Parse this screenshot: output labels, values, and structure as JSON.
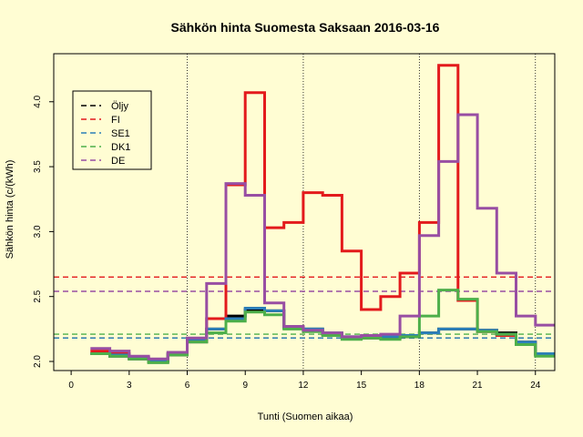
{
  "chart_data": {
    "type": "line",
    "title": "Sähkön hinta Suomesta Saksaan 2016-03-16",
    "xlabel": "Tunti (Suomen aikaa)",
    "ylabel": "Sähkön hinta (c/(kWh)",
    "xlim": [
      -0.9,
      25.0
    ],
    "ylim": [
      1.93,
      4.37
    ],
    "x_ticks": [
      0,
      3,
      6,
      9,
      12,
      15,
      18,
      21,
      24
    ],
    "y_ticks": [
      2.0,
      2.5,
      3.0,
      3.5,
      4.0
    ],
    "vlines": [
      6,
      12,
      18,
      24
    ],
    "step_x": [
      1,
      2,
      3,
      4,
      5,
      6,
      7,
      8,
      9,
      10,
      11,
      12,
      13,
      14,
      15,
      16,
      17,
      18,
      19,
      20,
      21,
      22,
      23,
      24,
      25
    ],
    "series": [
      {
        "name": "Öljy",
        "color": "#000000",
        "values": [
          2.06,
          2.04,
          2.02,
          2.0,
          2.05,
          2.15,
          2.25,
          2.35,
          2.4,
          2.39,
          2.26,
          2.25,
          2.21,
          2.18,
          2.18,
          2.18,
          2.19,
          2.22,
          2.25,
          2.25,
          2.24,
          2.22,
          2.14,
          2.05
        ]
      },
      {
        "name": "FI",
        "color": "#e31a1c",
        "values": [
          2.08,
          2.06,
          2.03,
          2.01,
          2.06,
          2.16,
          2.33,
          3.36,
          4.07,
          3.03,
          3.07,
          3.3,
          3.28,
          2.85,
          2.4,
          2.5,
          2.68,
          3.07,
          4.28,
          2.47,
          2.23,
          2.2,
          2.15,
          2.06
        ]
      },
      {
        "name": "SE1",
        "color": "#2c7fb8",
        "values": [
          2.06,
          2.05,
          2.03,
          2.01,
          2.06,
          2.17,
          2.25,
          2.33,
          2.41,
          2.39,
          2.26,
          2.25,
          2.22,
          2.19,
          2.19,
          2.19,
          2.2,
          2.22,
          2.25,
          2.25,
          2.24,
          2.21,
          2.15,
          2.06
        ]
      },
      {
        "name": "DK1",
        "color": "#4daf4a",
        "values": [
          2.06,
          2.04,
          2.02,
          1.99,
          2.05,
          2.15,
          2.22,
          2.31,
          2.38,
          2.36,
          2.25,
          2.23,
          2.2,
          2.17,
          2.18,
          2.17,
          2.19,
          2.35,
          2.55,
          2.48,
          2.23,
          2.21,
          2.13,
          2.04
        ]
      },
      {
        "name": "DE",
        "color": "#984ea3",
        "values": [
          2.1,
          2.08,
          2.04,
          2.02,
          2.07,
          2.18,
          2.6,
          3.37,
          3.28,
          2.45,
          2.27,
          2.24,
          2.22,
          2.19,
          2.2,
          2.21,
          2.35,
          2.97,
          3.54,
          3.9,
          3.18,
          2.68,
          2.35,
          2.28
        ]
      }
    ],
    "hlines": [
      {
        "series": "Öljy",
        "value": 2.18
      },
      {
        "series": "FI",
        "value": 2.65
      },
      {
        "series": "SE1",
        "value": 2.18
      },
      {
        "series": "DK1",
        "value": 2.21
      },
      {
        "series": "DE",
        "value": 2.54
      }
    ],
    "legend": {
      "position": "top-left",
      "entries": [
        "Öljy",
        "FI",
        "SE1",
        "DK1",
        "DE"
      ]
    }
  }
}
